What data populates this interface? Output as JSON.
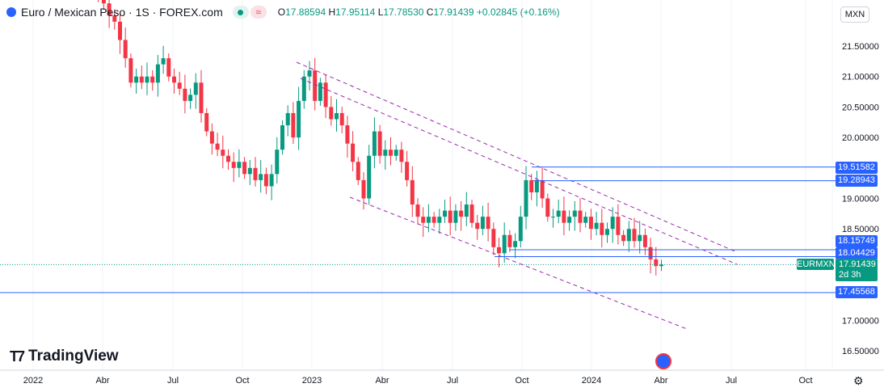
{
  "header": {
    "symbol": "Euro / Mexican Peso · 1S · FOREX.com",
    "open": "17.88594",
    "high": "17.95114",
    "low": "17.78530",
    "close": "17.91439",
    "change": "+0.02845 (+0.16%)",
    "o_label": "O",
    "h_label": "H",
    "l_label": "L",
    "c_label": "C",
    "wave_icon": "≈"
  },
  "currency_button": "MXN",
  "logo": "TradingView",
  "colors": {
    "up": "#089981",
    "down": "#f23645",
    "level": "#2962ff",
    "channel": "#9c27b0"
  },
  "price_axis": [
    "21.50000",
    "21.00000",
    "20.50000",
    "20.00000",
    "19.00000",
    "18.50000",
    "17.00000",
    "16.50000"
  ],
  "time_axis": [
    "2022",
    "Abr",
    "Jul",
    "Oct",
    "2023",
    "Abr",
    "Jul",
    "Oct",
    "2024",
    "Abr",
    "Jul",
    "Oct"
  ],
  "levels": [
    "19.51582",
    "19.28943",
    "18.15749",
    "18.04429",
    "17.45568"
  ],
  "last_price": {
    "symbol": "EURMXN",
    "price": "17.91439",
    "countdown": "2d 3h"
  },
  "chart_data": {
    "type": "candlestick",
    "interval": "1W",
    "start_week": "2022-03-21",
    "closes": [
      22.7,
      22.4,
      22.2,
      22.0,
      21.9,
      21.6,
      21.3,
      20.9,
      21.0,
      20.9,
      21.0,
      20.9,
      21.2,
      21.3,
      21.0,
      20.9,
      20.8,
      20.6,
      20.7,
      20.9,
      20.4,
      20.1,
      19.9,
      19.8,
      19.7,
      19.6,
      19.5,
      19.6,
      19.4,
      19.5,
      19.3,
      19.4,
      19.2,
      19.4,
      19.8,
      20.2,
      20.4,
      20.0,
      20.6,
      21.0,
      21.1,
      20.6,
      20.9,
      20.5,
      20.3,
      20.4,
      20.2,
      19.9,
      19.6,
      19.3,
      19.0,
      19.7,
      20.1,
      19.7,
      19.8,
      19.7,
      19.8,
      19.6,
      19.3,
      18.9,
      18.7,
      18.6,
      18.7,
      18.6,
      18.7,
      18.8,
      18.6,
      18.8,
      18.7,
      18.9,
      18.6,
      18.5,
      18.7,
      18.5,
      18.2,
      18.1,
      18.4,
      18.2,
      18.3,
      18.7,
      19.3,
      19.1,
      19.3,
      19.0,
      18.7,
      18.7,
      18.8,
      18.6,
      18.7,
      18.8,
      18.6,
      18.7,
      18.5,
      18.6,
      18.4,
      18.5,
      18.7,
      18.4,
      18.3,
      18.5,
      18.3,
      18.4,
      18.2,
      18.0,
      17.89,
      17.91439
    ],
    "ylim": [
      16.3,
      22.2
    ]
  }
}
